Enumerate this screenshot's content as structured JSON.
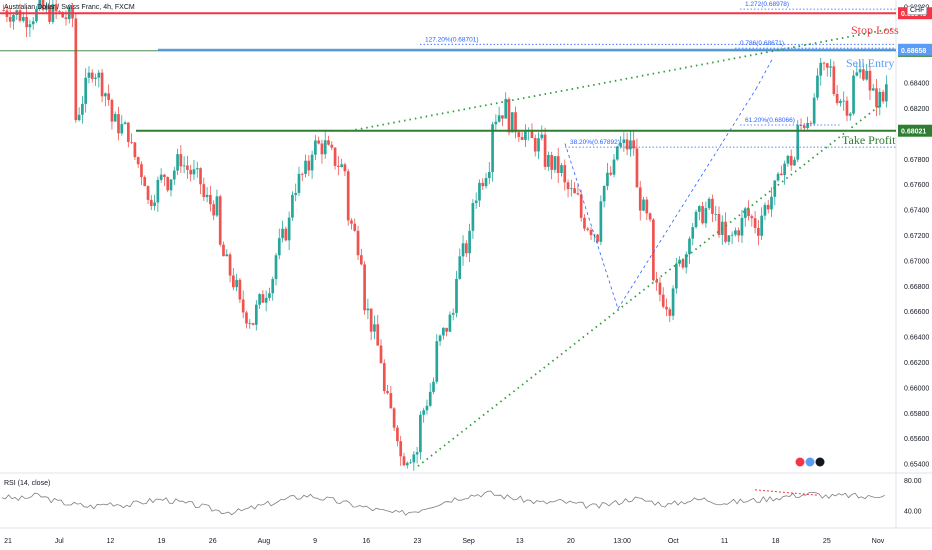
{
  "header": {
    "symbol_line": "Australian Dollar / Swiss Franc, 4h, FXCM",
    "currency": "CHF"
  },
  "rsi": {
    "title": "RSI (14, close)",
    "levels": [
      "80.00",
      "40.00"
    ]
  },
  "trade_labels": {
    "stop_loss": "Stop Loss",
    "sell_entry": "Sell Entry",
    "take_profit": "Take Profit"
  },
  "colors": {
    "up": "#26a69a",
    "down": "#ef5350",
    "stop_loss": "#f23645",
    "sell_entry": "#5b9cf6",
    "take_profit": "#2e7d32",
    "support_dots": "#2e9e3a",
    "fib": "#2962ff"
  },
  "chart_data": {
    "type": "candlestick",
    "title": "Australian Dollar / Swiss Franc, 4h, FXCM",
    "ylim": [
      0.6535,
      0.6905
    ],
    "y_ticks": [
      0.654,
      0.656,
      0.658,
      0.66,
      0.662,
      0.664,
      0.666,
      0.668,
      0.67,
      0.672,
      0.674,
      0.676,
      0.678,
      0.682,
      0.684,
      0.69
    ],
    "x_tick_labels": [
      "21",
      "Jul",
      "12",
      "19",
      "26",
      "Aug",
      "9",
      "16",
      "23",
      "Sep",
      "13",
      "20",
      "13:00",
      "Oct",
      "11",
      "18",
      "25",
      "Nov"
    ],
    "price_path": [
      [
        0.6897,
        0.6893
      ],
      [
        0.689,
        0.6896
      ],
      [
        0.6897,
        0.6894
      ],
      [
        0.6893,
        0.689
      ],
      [
        0.6811,
        0.6855
      ],
      [
        0.6852,
        0.6822
      ],
      [
        0.681,
        0.68
      ],
      [
        0.679,
        0.676
      ],
      [
        0.6745,
        0.677
      ],
      [
        0.676,
        0.6785
      ],
      [
        0.6775,
        0.676
      ],
      [
        0.675,
        0.674
      ],
      [
        0.671,
        0.6675
      ],
      [
        0.6665,
        0.665
      ],
      [
        0.666,
        0.669
      ],
      [
        0.67,
        0.6735
      ],
      [
        0.6755,
        0.6775
      ],
      [
        0.679,
        0.679
      ],
      [
        0.6785,
        0.677
      ],
      [
        0.674,
        0.67
      ],
      [
        0.667,
        0.662
      ],
      [
        0.66,
        0.656
      ],
      [
        0.6545,
        0.655
      ],
      [
        0.657,
        0.661
      ],
      [
        0.663,
        0.666
      ],
      [
        0.669,
        0.672
      ],
      [
        0.6745,
        0.678
      ],
      [
        0.681,
        0.6822
      ],
      [
        0.681,
        0.68
      ],
      [
        0.6795,
        0.679
      ],
      [
        0.678,
        0.677
      ],
      [
        0.676,
        0.6745
      ],
      [
        0.6735,
        0.672
      ],
      [
        0.675,
        0.6775
      ],
      [
        0.679,
        0.679
      ],
      [
        0.676,
        0.672
      ],
      [
        0.668,
        0.6665
      ],
      [
        0.668,
        0.671
      ],
      [
        0.6725,
        0.674
      ],
      [
        0.6745,
        0.672
      ],
      [
        0.671,
        0.673
      ],
      [
        0.674,
        0.6725
      ],
      [
        0.6735,
        0.676
      ],
      [
        0.6775,
        0.678
      ],
      [
        0.68,
        0.682
      ],
      [
        0.6845,
        0.685
      ],
      [
        0.6835,
        0.682
      ],
      [
        0.684,
        0.6855
      ],
      [
        0.683,
        0.6825
      ],
      [
        0.684,
        0.6865
      ]
    ],
    "horizontal_levels": [
      {
        "name": "Stop Loss",
        "price": 0.68946,
        "label": "0.68946",
        "color": "#f23645"
      },
      {
        "name": "Sell Entry",
        "price": 0.6865,
        "label": "0.68650",
        "color": "#2e7d32"
      },
      {
        "name": "Sell Entry",
        "price": 0.68658,
        "label": "0.68658",
        "color": "#5b9cf6"
      },
      {
        "name": "Take Profit",
        "price": 0.68021,
        "label": "0.68021",
        "color": "#2e7d32"
      }
    ],
    "fib_labels": [
      {
        "text": "1.272(0.68978)",
        "price": 0.68978
      },
      {
        "text": "127.20%(0.68701)",
        "price": 0.68701
      },
      {
        "text": "0.786(0.68671)",
        "price": 0.68671
      },
      {
        "text": "38.20%(0.67892)",
        "price": 0.67892
      },
      {
        "text": "61.20%(0.68066)",
        "price": 0.68066
      }
    ],
    "rsi_series": [
      58,
      55,
      60,
      52,
      48,
      45,
      50,
      47,
      52,
      55,
      50,
      46,
      40,
      38,
      44,
      50,
      56,
      60,
      55,
      50,
      45,
      40,
      36,
      40,
      48,
      55,
      60,
      63,
      58,
      54,
      50,
      52,
      48,
      45,
      50,
      56,
      52,
      47,
      53,
      55,
      50,
      52,
      54,
      57,
      60,
      62,
      58,
      60,
      57,
      62
    ],
    "rsi_ylim": [
      20,
      85
    ]
  }
}
